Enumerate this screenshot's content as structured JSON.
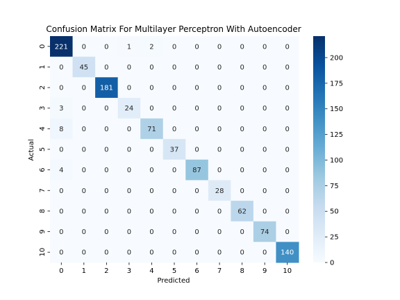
{
  "chart_data": {
    "type": "heatmap",
    "title": "Confusion Matrix For Multilayer Perceptron With Autoencoder",
    "xlabel": "Predicted",
    "ylabel": "Actual",
    "x_categories": [
      "0",
      "1",
      "2",
      "3",
      "4",
      "5",
      "6",
      "7",
      "8",
      "9",
      "10"
    ],
    "y_categories": [
      "0",
      "1",
      "2",
      "3",
      "4",
      "5",
      "6",
      "7",
      "8",
      "9",
      "10"
    ],
    "values": [
      [
        221,
        0,
        0,
        1,
        2,
        0,
        0,
        0,
        0,
        0,
        0
      ],
      [
        0,
        45,
        0,
        0,
        0,
        0,
        0,
        0,
        0,
        0,
        0
      ],
      [
        0,
        0,
        181,
        0,
        0,
        0,
        0,
        0,
        0,
        0,
        0
      ],
      [
        3,
        0,
        0,
        24,
        0,
        0,
        0,
        0,
        0,
        0,
        0
      ],
      [
        8,
        0,
        0,
        0,
        71,
        0,
        0,
        0,
        0,
        0,
        0
      ],
      [
        0,
        0,
        0,
        0,
        0,
        37,
        0,
        0,
        0,
        0,
        0
      ],
      [
        4,
        0,
        0,
        0,
        0,
        0,
        87,
        0,
        0,
        0,
        0
      ],
      [
        0,
        0,
        0,
        0,
        0,
        0,
        0,
        28,
        0,
        0,
        0
      ],
      [
        0,
        0,
        0,
        0,
        0,
        0,
        0,
        0,
        62,
        0,
        0
      ],
      [
        0,
        0,
        0,
        0,
        0,
        0,
        0,
        0,
        0,
        74,
        0
      ],
      [
        0,
        0,
        0,
        0,
        0,
        0,
        0,
        0,
        0,
        0,
        140
      ]
    ],
    "colorbar": {
      "range": [
        0,
        221
      ],
      "ticks": [
        0,
        25,
        50,
        75,
        100,
        125,
        150,
        175,
        200
      ],
      "colormap": "Blues"
    }
  }
}
